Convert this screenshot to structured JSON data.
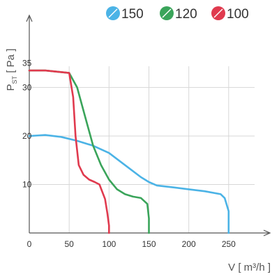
{
  "chart_data": {
    "type": "line",
    "xlabel": "V [ m³/h ]",
    "ylabel": "P",
    "ylabel_sub": "ST",
    "ylabel_unit": " [ Pa ]",
    "xlim": [
      0,
      300
    ],
    "ylim": [
      0,
      42
    ],
    "x_ticks": [
      0,
      50,
      100,
      150,
      200,
      250
    ],
    "x_tick_labels": [
      "0",
      "50",
      "100",
      "150",
      "200",
      "250"
    ],
    "y_ticks": [
      10,
      20,
      30,
      35
    ],
    "y_tick_labels": [
      "10",
      "20",
      "30",
      "35"
    ],
    "y_grid": [
      10,
      20,
      30
    ],
    "x_grid": [
      50,
      100,
      150,
      200,
      250
    ],
    "grid": true,
    "legend_placement": "top-right",
    "series": [
      {
        "name": "150",
        "color": "#4bb3e6",
        "x": [
          0,
          20,
          40,
          60,
          80,
          100,
          120,
          140,
          150,
          160,
          180,
          200,
          220,
          240,
          245,
          250,
          250
        ],
        "y": [
          20,
          20.2,
          19.8,
          19,
          18,
          16.5,
          14,
          11.5,
          10.5,
          9.8,
          9.4,
          9,
          8.6,
          8,
          7.2,
          4.5,
          0
        ]
      },
      {
        "name": "120",
        "color": "#3aa45a",
        "x": [
          0,
          20,
          50,
          60,
          70,
          80,
          90,
          100,
          110,
          120,
          130,
          140,
          148,
          150,
          150
        ],
        "y": [
          33.5,
          33.5,
          33,
          30,
          24,
          18,
          14,
          11,
          9,
          8,
          7.5,
          7.2,
          6,
          3,
          0
        ]
      },
      {
        "name": "100",
        "color": "#e03a4e",
        "x": [
          0,
          20,
          50,
          55,
          58,
          62,
          68,
          75,
          82,
          88,
          95,
          98,
          100,
          100
        ],
        "y": [
          33.5,
          33.5,
          33,
          28,
          20,
          14,
          12,
          11,
          10.5,
          10,
          7,
          4,
          1.5,
          0
        ]
      }
    ]
  }
}
